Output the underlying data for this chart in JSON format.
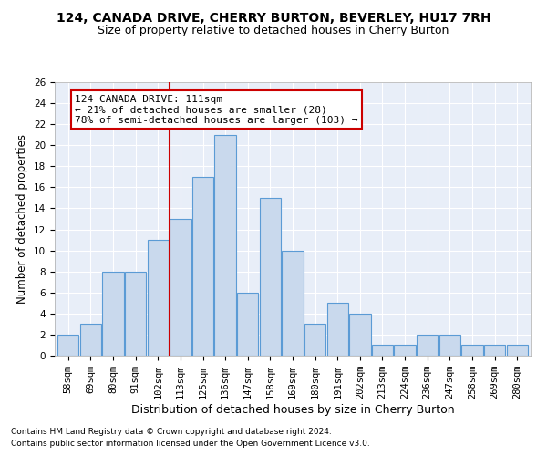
{
  "title": "124, CANADA DRIVE, CHERRY BURTON, BEVERLEY, HU17 7RH",
  "subtitle": "Size of property relative to detached houses in Cherry Burton",
  "xlabel": "Distribution of detached houses by size in Cherry Burton",
  "ylabel": "Number of detached properties",
  "footnote1": "Contains HM Land Registry data © Crown copyright and database right 2024.",
  "footnote2": "Contains public sector information licensed under the Open Government Licence v3.0.",
  "annotation_line1": "124 CANADA DRIVE: 111sqm",
  "annotation_line2": "← 21% of detached houses are smaller (28)",
  "annotation_line3": "78% of semi-detached houses are larger (103) →",
  "bin_labels": [
    "58sqm",
    "69sqm",
    "80sqm",
    "91sqm",
    "102sqm",
    "113sqm",
    "125sqm",
    "136sqm",
    "147sqm",
    "158sqm",
    "169sqm",
    "180sqm",
    "191sqm",
    "202sqm",
    "213sqm",
    "224sqm",
    "236sqm",
    "247sqm",
    "258sqm",
    "269sqm",
    "280sqm"
  ],
  "bar_values": [
    2,
    3,
    8,
    8,
    11,
    13,
    17,
    21,
    6,
    15,
    10,
    3,
    5,
    4,
    1,
    1,
    2,
    2,
    1,
    1,
    1
  ],
  "bar_color": "#c9d9ed",
  "bar_edge_color": "#5b9bd5",
  "vline_color": "#cc0000",
  "annotation_box_edge": "#cc0000",
  "bg_color": "#e8eef8",
  "ylim": [
    0,
    26
  ],
  "yticks": [
    0,
    2,
    4,
    6,
    8,
    10,
    12,
    14,
    16,
    18,
    20,
    22,
    24,
    26
  ],
  "title_fontsize": 10,
  "subtitle_fontsize": 9,
  "xlabel_fontsize": 9,
  "ylabel_fontsize": 8.5,
  "tick_fontsize": 7.5,
  "annot_fontsize": 8,
  "footnote_fontsize": 6.5
}
